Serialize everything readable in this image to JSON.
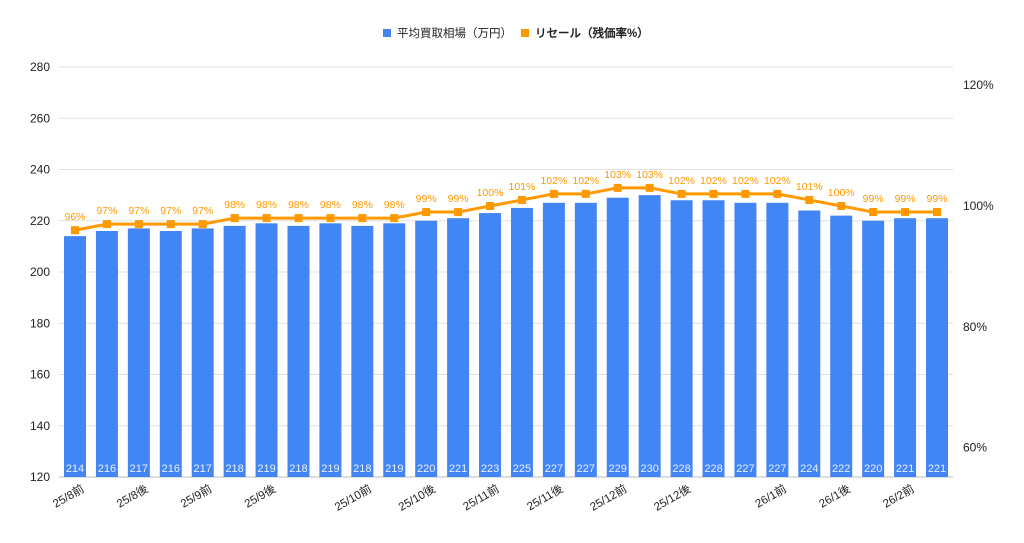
{
  "chart_data": {
    "type": "bar+line",
    "categories": [
      "25/8前",
      "",
      "25/8後",
      "",
      "25/9前",
      "",
      "25/9後",
      "",
      "",
      "25/10前",
      "",
      "25/10後",
      "",
      "25/11前",
      "",
      "25/11後",
      "",
      "25/12前",
      "",
      "25/12後",
      "",
      "",
      "26/1前",
      "",
      "26/1後",
      "",
      "26/2前",
      ""
    ],
    "series": [
      {
        "name": "平均買取相場（万円）",
        "type": "bar",
        "axis": "left",
        "color": "#4285f4",
        "values": [
          214,
          216,
          217,
          216,
          217,
          218,
          219,
          218,
          219,
          218,
          219,
          220,
          221,
          223,
          225,
          227,
          227,
          229,
          230,
          228,
          228,
          227,
          227,
          224,
          222,
          220,
          221,
          221
        ]
      },
      {
        "name": "リセール（残価率%）",
        "type": "line",
        "axis": "right",
        "color": "#ff9900",
        "values": [
          96,
          97,
          97,
          97,
          97,
          98,
          98,
          98,
          98,
          98,
          98,
          99,
          99,
          100,
          101,
          102,
          102,
          103,
          103,
          102,
          102,
          102,
          102,
          101,
          100,
          99,
          99,
          99
        ]
      }
    ],
    "y_left": {
      "ticks": [
        120,
        140,
        160,
        180,
        200,
        220,
        240,
        260,
        280
      ],
      "ylim": [
        120,
        280
      ]
    },
    "y_right": {
      "ticks": [
        "60%",
        "80%",
        "100%",
        "120%"
      ],
      "tick_values": [
        60,
        80,
        100,
        120
      ]
    },
    "legend_position": "top",
    "grid": true
  }
}
